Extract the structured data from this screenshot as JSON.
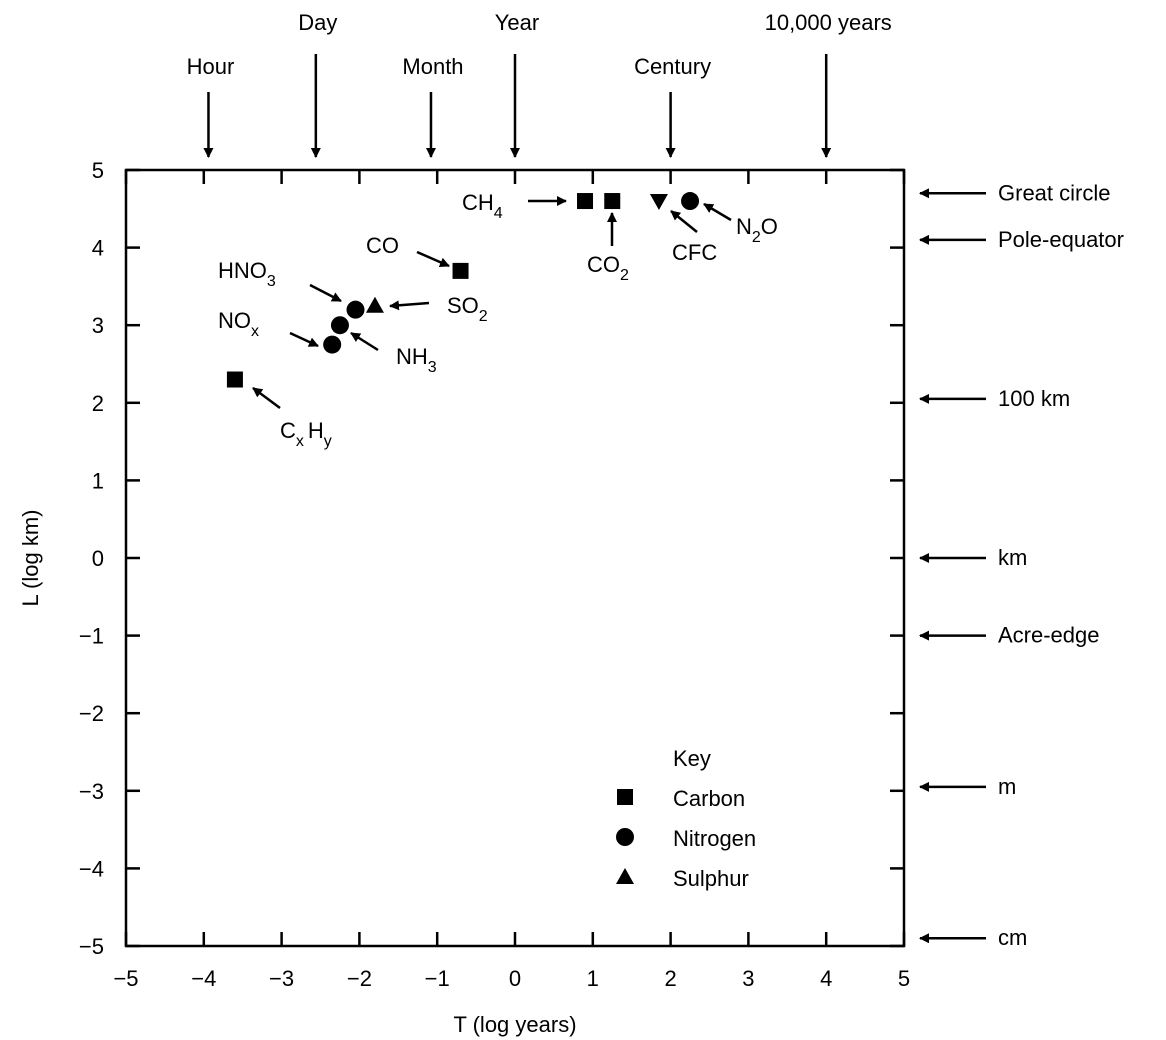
{
  "chart_data": {
    "type": "scatter",
    "xlabel": "T (log years)",
    "ylabel": "L (log km)",
    "xlim": [
      -5,
      5
    ],
    "ylim": [
      -5,
      5
    ],
    "x_ticks": [
      "−5",
      "−4",
      "−3",
      "−2",
      "−1",
      "0",
      "1",
      "2",
      "3",
      "4",
      "5"
    ],
    "y_ticks": [
      "5",
      "4",
      "3",
      "2",
      "1",
      "0",
      "−1",
      "−2",
      "−3",
      "−4",
      "−5"
    ],
    "grid": false,
    "top_markers": [
      {
        "label": "Hour",
        "x": -3.94
      },
      {
        "label": "Day",
        "x": -2.56
      },
      {
        "label": "Month",
        "x": -1.08
      },
      {
        "label": "Year",
        "x": 0
      },
      {
        "label": "Century",
        "x": 2
      },
      {
        "label": "10,000 years",
        "x": 4
      }
    ],
    "right_markers": [
      {
        "label": "Great circle",
        "y": 4.7
      },
      {
        "label": "Pole-equator",
        "y": 4.1
      },
      {
        "label": "100 km",
        "y": 2.05
      },
      {
        "label": "km",
        "y": 0
      },
      {
        "label": "Acre-edge",
        "y": -1
      },
      {
        "label": "m",
        "y": -2.95
      },
      {
        "label": "cm",
        "y": -4.9
      }
    ],
    "legend": {
      "title": "Key",
      "position": "bottom-right",
      "entries": [
        {
          "label": "Carbon",
          "marker": "square"
        },
        {
          "label": "Nitrogen",
          "marker": "circle"
        },
        {
          "label": "Sulphur",
          "marker": "triangle"
        }
      ]
    },
    "series": [
      {
        "name": "Carbon",
        "marker": "square",
        "points": [
          {
            "label": "CH4",
            "x": 0.9,
            "y": 4.6
          },
          {
            "label": "CO2",
            "x": 1.25,
            "y": 4.6
          },
          {
            "label": "CO",
            "x": -0.7,
            "y": 3.7
          },
          {
            "label": "CxHy",
            "x": -3.6,
            "y": 2.3
          }
        ]
      },
      {
        "name": "Nitrogen",
        "marker": "circle",
        "points": [
          {
            "label": "N2O",
            "x": 2.25,
            "y": 4.6
          },
          {
            "label": "HNO3",
            "x": -2.05,
            "y": 3.2
          },
          {
            "label": "NH3",
            "x": -2.25,
            "y": 3.0
          },
          {
            "label": "NOx",
            "x": -2.35,
            "y": 2.75
          }
        ]
      },
      {
        "name": "Sulphur",
        "marker": "triangle",
        "points": [
          {
            "label": "SO2",
            "x": -1.8,
            "y": 3.25
          }
        ]
      },
      {
        "name": "CFC",
        "marker": "triangle-down",
        "points": [
          {
            "label": "CFC",
            "x": 1.85,
            "y": 4.6
          }
        ]
      }
    ]
  },
  "labels": {
    "ch4": {
      "main": "CH",
      "sub": "4"
    },
    "co2": {
      "main": "CO",
      "sub": "2"
    },
    "cfc": {
      "main": "CFC"
    },
    "n2o": {
      "a": "N",
      "sub": "2",
      "b": "O"
    },
    "co": {
      "main": "CO"
    },
    "hno3": {
      "main": "HNO",
      "sub": "3"
    },
    "so2": {
      "main": "SO",
      "sub": "2"
    },
    "nox": {
      "main": "NO",
      "sub": "x"
    },
    "nh3": {
      "main": "NH",
      "sub": "3"
    },
    "cxhy": {
      "a": "C",
      "sub1": "x",
      "b": "H",
      "sub2": "y"
    }
  }
}
